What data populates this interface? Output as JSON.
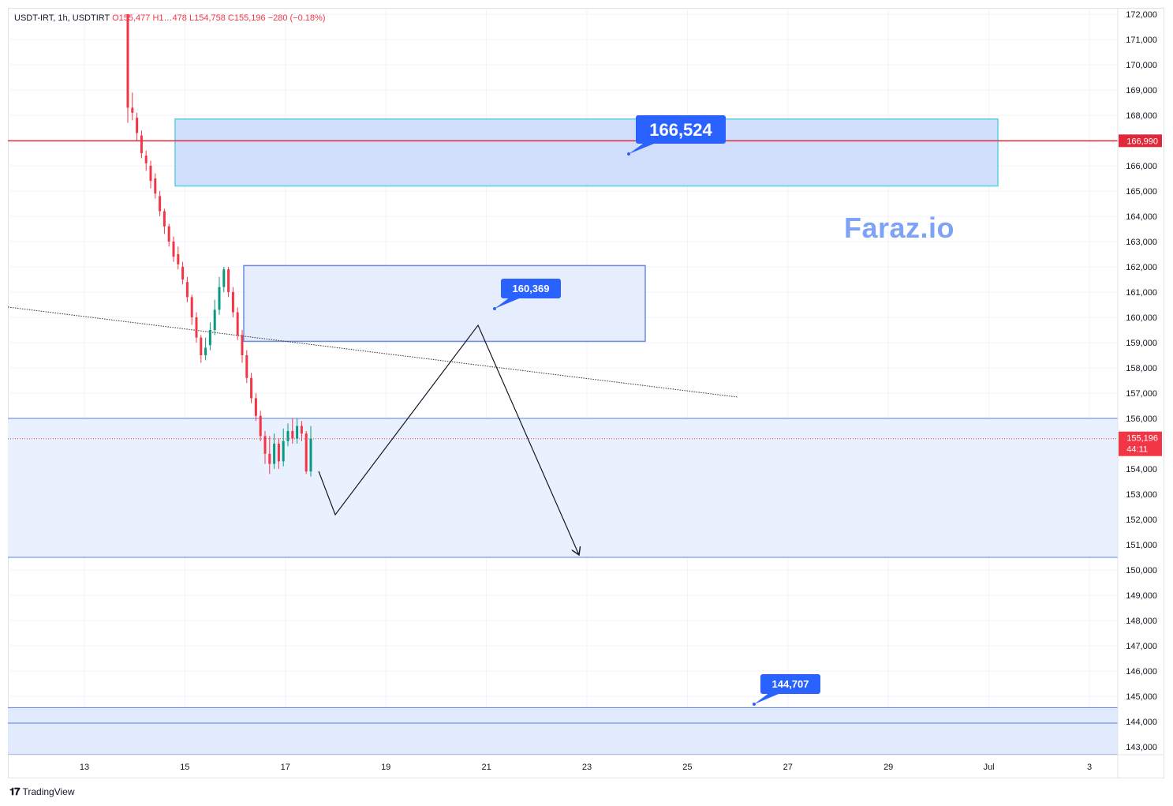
{
  "header": {
    "symbol": "USDT-IRT, 1h, USDTIRT",
    "open": "O155,477",
    "high": "H1…478",
    "low": "L154,758",
    "close": "C155,196",
    "change": "−280 (−0.18%)"
  },
  "watermark": "Faraz.io",
  "branding": "TradingView",
  "price_tags": {
    "red_line": "166,990",
    "last_price": "155,196",
    "countdown": "44:11"
  },
  "callouts": [
    {
      "text": "166,524",
      "price": 166524
    },
    {
      "text": "160,369",
      "price": 160369
    },
    {
      "text": "144,707",
      "price": 144707
    }
  ],
  "colors": {
    "bull": "#089981",
    "bear": "#f23645",
    "zone_fill": "#cfdcfb",
    "zone_border": "#5fcfe0",
    "callout": "#2962ff",
    "red_line": "#e0283b"
  },
  "chart_data": {
    "type": "candlestick",
    "title": "USDT-IRT, 1h, USDTIRT",
    "x_ticks": [
      "13",
      "15",
      "17",
      "19",
      "21",
      "23",
      "25",
      "27",
      "29",
      "Jul",
      "3"
    ],
    "y_ticks": [
      "143,000",
      "144,000",
      "145,000",
      "146,000",
      "147,000",
      "148,000",
      "149,000",
      "150,000",
      "151,000",
      "152,000",
      "153,000",
      "154,000",
      "155,000",
      "156,000",
      "157,000",
      "158,000",
      "159,000",
      "160,000",
      "161,000",
      "162,000",
      "163,000",
      "164,000",
      "165,000",
      "166,000",
      "167,000",
      "168,000",
      "169,000",
      "170,000",
      "171,000",
      "172,000"
    ],
    "ylim": [
      142700,
      172300
    ],
    "x_range_days": [
      "Jun 12",
      "Jul 3"
    ],
    "grid": true,
    "horizontal_line": 166990,
    "last_price": 155196,
    "zones": [
      {
        "from": "Jun 14.9",
        "to": "Jul 1",
        "low": 165200,
        "high": 167850
      },
      {
        "from": "Jun 16.2",
        "to": "Jun 24.2",
        "low": 159050,
        "high": 162050
      },
      {
        "from": "Jun 12",
        "to": "Jul 3",
        "low": 150500,
        "high": 156000
      },
      {
        "from": "Jun 12",
        "to": "Jul 3",
        "low": 142700,
        "high": 144550
      }
    ],
    "trendline": {
      "from": [
        "Jun 12",
        160450
      ],
      "to": [
        "Jun 26",
        156850
      ]
    },
    "projection_path": [
      [
        "Jun 17.7",
        154000
      ],
      [
        "Jun 18",
        152200
      ],
      [
        "Jun 20.9",
        159700
      ],
      [
        "Jun 22.9",
        150600
      ]
    ],
    "candles": [
      [
        160,
        172000,
        168300,
        171850,
        167700
      ],
      [
        161,
        168300,
        168100,
        168900,
        167800
      ],
      [
        162,
        167900,
        167300,
        168100,
        167000
      ],
      [
        163,
        167200,
        166500,
        167400,
        166300
      ],
      [
        164,
        166400,
        166100,
        166600,
        165800
      ],
      [
        165,
        166000,
        165400,
        166200,
        165100
      ],
      [
        166,
        165500,
        164900,
        165700,
        164700
      ],
      [
        167,
        164800,
        164200,
        165000,
        164000
      ],
      [
        168,
        164200,
        163600,
        164300,
        163300
      ],
      [
        169,
        163600,
        163000,
        163700,
        162800
      ],
      [
        170,
        163000,
        162400,
        163200,
        162200
      ],
      [
        171,
        162500,
        162100,
        162800,
        161900
      ],
      [
        172,
        162000,
        161500,
        162200,
        161300
      ],
      [
        173,
        161400,
        160800,
        161600,
        160600
      ],
      [
        174,
        160800,
        160000,
        160900,
        159700
      ],
      [
        175,
        160000,
        159200,
        160200,
        159000
      ],
      [
        176,
        159200,
        158500,
        159300,
        158200
      ],
      [
        177,
        158500,
        158800,
        159200,
        158300
      ],
      [
        178,
        158900,
        159500,
        159800,
        158700
      ],
      [
        179,
        159500,
        160300,
        160700,
        159300
      ],
      [
        180,
        160300,
        161200,
        161600,
        160100
      ],
      [
        181,
        161200,
        161900,
        162000,
        161000
      ],
      [
        182,
        161900,
        161000,
        162000,
        160800
      ],
      [
        183,
        161000,
        160200,
        161200,
        160000
      ],
      [
        184,
        160200,
        159300,
        160400,
        159100
      ],
      [
        185,
        159300,
        158500,
        159500,
        158200
      ],
      [
        186,
        158500,
        157600,
        158700,
        157400
      ],
      [
        187,
        157600,
        156800,
        157800,
        156600
      ],
      [
        188,
        156800,
        156100,
        157000,
        155900
      ],
      [
        189,
        156100,
        155300,
        156300,
        155100
      ],
      [
        190,
        155300,
        154600,
        155500,
        154200
      ],
      [
        191,
        154600,
        154200,
        155300,
        153800
      ],
      [
        192,
        154200,
        155000,
        155400,
        154000
      ],
      [
        193,
        155000,
        154300,
        155200,
        154000
      ],
      [
        194,
        154300,
        155100,
        155600,
        154100
      ],
      [
        195,
        155100,
        155500,
        155800,
        154900
      ],
      [
        196,
        155500,
        155200,
        156000,
        155000
      ],
      [
        197,
        155200,
        155700,
        156000,
        155000
      ],
      [
        198,
        155700,
        155400,
        155900,
        155100
      ],
      [
        199,
        155400,
        153900,
        155500,
        153800
      ],
      [
        200,
        153900,
        155200,
        155700,
        153700
      ]
    ]
  }
}
